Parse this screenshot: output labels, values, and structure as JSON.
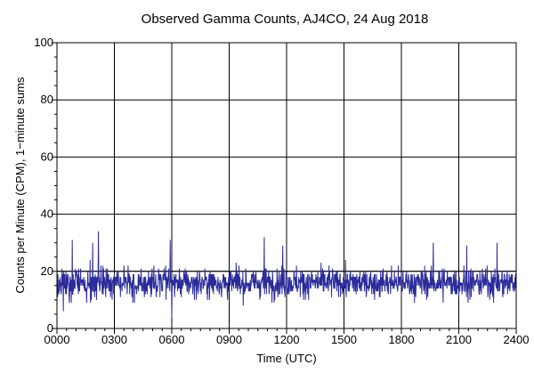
{
  "chart_data": {
    "type": "line",
    "title": "Observed Gamma Counts, AJ4CO, 24 Aug 2018",
    "xlabel": "Time (UTC)",
    "ylabel": "Counts per Minute (CPM), 1−minute sums",
    "xlim": [
      0,
      1440
    ],
    "ylim": [
      0,
      100
    ],
    "x_ticks": [
      {
        "value": 0,
        "label": "0000"
      },
      {
        "value": 180,
        "label": "0300"
      },
      {
        "value": 360,
        "label": "0600"
      },
      {
        "value": 540,
        "label": "0900"
      },
      {
        "value": 720,
        "label": "1200"
      },
      {
        "value": 900,
        "label": "1500"
      },
      {
        "value": 1080,
        "label": "1800"
      },
      {
        "value": 1260,
        "label": "2100"
      },
      {
        "value": 1440,
        "label": "2400"
      }
    ],
    "y_ticks": [
      {
        "value": 0,
        "label": "0"
      },
      {
        "value": 20,
        "label": "20"
      },
      {
        "value": 40,
        "label": "40"
      },
      {
        "value": 60,
        "label": "60"
      },
      {
        "value": 80,
        "label": "80"
      },
      {
        "value": 100,
        "label": "100"
      }
    ],
    "grid": true,
    "reference_line": {
      "value": 20
    },
    "series": [
      {
        "color": "#2b2b9a",
        "summary": {
          "count_points": 1440,
          "typical_min": 5,
          "typical_max": 34,
          "mean_approx": 16
        },
        "notable_points": [
          {
            "x": 48,
            "y": 31
          },
          {
            "x": 112,
            "y": 30
          },
          {
            "x": 130,
            "y": 34
          },
          {
            "x": 355,
            "y": 31
          },
          {
            "x": 650,
            "y": 32
          },
          {
            "x": 708,
            "y": 29
          },
          {
            "x": 1180,
            "y": 30
          },
          {
            "x": 1285,
            "y": 29
          },
          {
            "x": 1380,
            "y": 30
          },
          {
            "x": 360,
            "y": 4
          },
          {
            "x": 20,
            "y": 6
          }
        ]
      }
    ]
  }
}
